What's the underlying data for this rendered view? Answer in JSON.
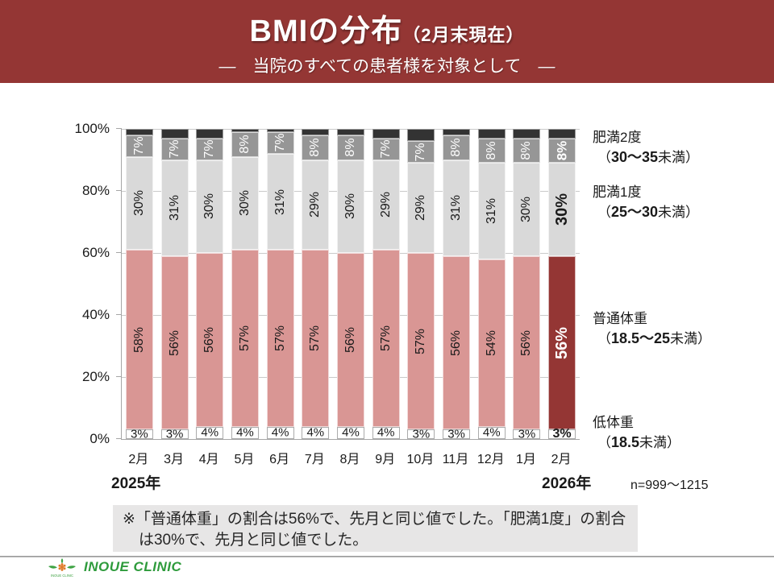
{
  "header": {
    "title": "BMIの分布",
    "title_suffix": "（2月末現在）",
    "subtitle": "―　当院のすべての患者様を対象として　―"
  },
  "chart_data": {
    "type": "bar",
    "stacked": true,
    "title": "BMIの分布（2月末現在）",
    "categories": [
      "2月",
      "3月",
      "4月",
      "5月",
      "6月",
      "7月",
      "8月",
      "9月",
      "10月",
      "11月",
      "12月",
      "1月",
      "2月"
    ],
    "series": [
      {
        "name": "低体重（18.5未満）",
        "color": "#ffffff",
        "border": "#ababab",
        "label_color": "#1a1a1a",
        "label_style": "horizontal",
        "values": [
          3,
          3,
          4,
          4,
          4,
          4,
          4,
          4,
          3,
          3,
          4,
          3,
          3
        ]
      },
      {
        "name": "普通体重（18.5～25未満）",
        "color": "#d99694",
        "highlight_color": "#943634",
        "border": "rgba(255,255,255,0.65)",
        "label_color": "#1a1a1a",
        "highlight_label_color": "#ffffff",
        "label_style": "rotated",
        "values": [
          58,
          56,
          56,
          57,
          57,
          57,
          56,
          57,
          57,
          56,
          54,
          56,
          56
        ]
      },
      {
        "name": "肥満1度（25～30未満）",
        "color": "#d9d9d9",
        "border": "rgba(255,255,255,0.65)",
        "label_color": "#1a1a1a",
        "label_style": "rotated",
        "values": [
          30,
          31,
          30,
          30,
          31,
          29,
          30,
          29,
          29,
          31,
          31,
          30,
          30
        ]
      },
      {
        "name": "肥満2度（30～35未満）",
        "color": "#969696",
        "border": "rgba(255,255,255,0.65)",
        "label_color": "#ffffff",
        "label_style": "rotated",
        "values": [
          7,
          7,
          7,
          8,
          7,
          8,
          8,
          7,
          7,
          8,
          8,
          8,
          8
        ]
      },
      {
        "name": "",
        "color": "#333333",
        "border": "rgba(255,255,255,0.5)",
        "label_style": "none",
        "values": [
          2,
          3,
          3,
          1,
          1,
          2,
          2,
          3,
          4,
          2,
          3,
          3,
          3
        ]
      }
    ],
    "highlight_index": 12,
    "y_ticks": [
      "100%",
      "80%",
      "60%",
      "40%",
      "20%",
      "0%"
    ],
    "ylim": [
      0,
      100
    ],
    "grid": true,
    "legend_position": "right"
  },
  "axis": {
    "year_left": "2025年",
    "year_right": "2026年"
  },
  "legend": {
    "items": [
      {
        "name": "肥満2度",
        "open": "（",
        "bold": "30～35",
        "close": "未満）"
      },
      {
        "name": "肥満1度",
        "open": "（",
        "bold": "25～30",
        "close": "未満）"
      },
      {
        "name": "普通体重",
        "open": "（",
        "bold": "18.5～25",
        "close": "未満）"
      },
      {
        "name": "低体重",
        "open": "（",
        "bold": "18.5",
        "close": "未満）"
      }
    ],
    "n_label": "n=999～1215"
  },
  "note": {
    "text": "※「普通体重」の割合は56%で、先月と同じ値でした。「肥満1度」の割合は30%で、先月と同じ値でした。"
  },
  "footer": {
    "clinic_name": "INOUE CLINIC",
    "logo_text": "INOUE CLINIC"
  },
  "colors": {
    "header_bg": "#943634",
    "highlight": "#943634",
    "normal_weight_pink": "#d99694",
    "obesity1_gray": "#d9d9d9",
    "obesity2_gray": "#969696",
    "top_cap_black": "#333333",
    "note_bg": "#e7e6e6",
    "axis_gray": "#a6a6a6",
    "grid_gray": "#c9c9c9",
    "clinic_green": "#2e9b3c",
    "logo_orange": "#e07b2a"
  }
}
